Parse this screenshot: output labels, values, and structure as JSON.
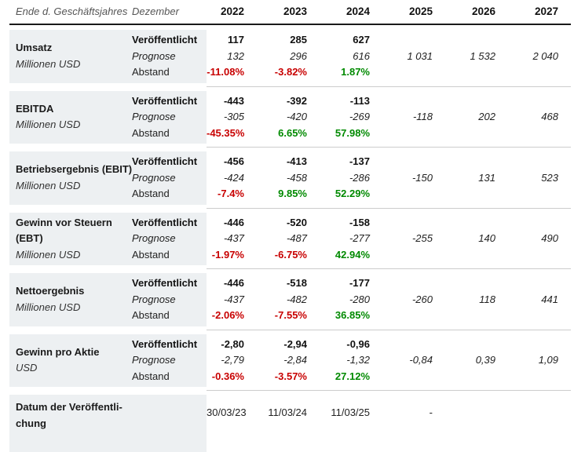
{
  "header": {
    "fiscal_year_end_label": "Ende d. Geschäftsjahres",
    "period_label": "Dezember",
    "years": [
      "2022",
      "2023",
      "2024",
      "2025",
      "2026",
      "2027"
    ]
  },
  "row_labels": {
    "published": "Veröffentlicht",
    "forecast": "Prognose",
    "spread": "Abstand"
  },
  "colors": {
    "negative": "#c80000",
    "positive": "#008a00",
    "panel_bg": "#edf0f2"
  },
  "metrics": [
    {
      "name_lines": [
        "Umsatz"
      ],
      "unit": "Millionen USD",
      "published": [
        "117",
        "285",
        "627",
        "",
        "",
        ""
      ],
      "forecast": [
        "132",
        "296",
        "616",
        "1 031",
        "1 532",
        "2 040"
      ],
      "spread": [
        "-11.08%",
        "-3.82%",
        "1.87%",
        "",
        "",
        ""
      ]
    },
    {
      "name_lines": [
        "EBITDA"
      ],
      "unit": "Millionen USD",
      "published": [
        "-443",
        "-392",
        "-113",
        "",
        "",
        ""
      ],
      "forecast": [
        "-305",
        "-420",
        "-269",
        "-118",
        "202",
        "468"
      ],
      "spread": [
        "-45.35%",
        "6.65%",
        "57.98%",
        "",
        "",
        ""
      ]
    },
    {
      "name_lines": [
        "Betriebsergebnis (EBIT)"
      ],
      "unit": "Millionen USD",
      "published": [
        "-456",
        "-413",
        "-137",
        "",
        "",
        ""
      ],
      "forecast": [
        "-424",
        "-458",
        "-286",
        "-150",
        "131",
        "523"
      ],
      "spread": [
        "-7.4%",
        "9.85%",
        "52.29%",
        "",
        "",
        ""
      ]
    },
    {
      "name_lines": [
        "Gewinn vor Steuern",
        "(EBT)"
      ],
      "unit": "Millionen USD",
      "published": [
        "-446",
        "-520",
        "-158",
        "",
        "",
        ""
      ],
      "forecast": [
        "-437",
        "-487",
        "-277",
        "-255",
        "140",
        "490"
      ],
      "spread": [
        "-1.97%",
        "-6.75%",
        "42.94%",
        "",
        "",
        ""
      ]
    },
    {
      "name_lines": [
        "Nettoergebnis"
      ],
      "unit": "Millionen USD",
      "published": [
        "-446",
        "-518",
        "-177",
        "",
        "",
        ""
      ],
      "forecast": [
        "-437",
        "-482",
        "-280",
        "-260",
        "118",
        "441"
      ],
      "spread": [
        "-2.06%",
        "-7.55%",
        "36.85%",
        "",
        "",
        ""
      ]
    },
    {
      "name_lines": [
        "Gewinn pro Aktie"
      ],
      "unit": "USD",
      "published": [
        "-2,80",
        "-2,94",
        "-0,96",
        "",
        "",
        ""
      ],
      "forecast": [
        "-2,79",
        "-2,84",
        "-1,32",
        "-0,84",
        "0,39",
        "1,09"
      ],
      "spread": [
        "-0.36%",
        "-3.57%",
        "27.12%",
        "",
        "",
        ""
      ]
    }
  ],
  "publication_dates": {
    "label_lines": [
      "Datum der Veröffentli-",
      "chung"
    ],
    "values": [
      "30/03/23",
      "11/03/24",
      "11/03/25",
      "-",
      "",
      ""
    ]
  }
}
